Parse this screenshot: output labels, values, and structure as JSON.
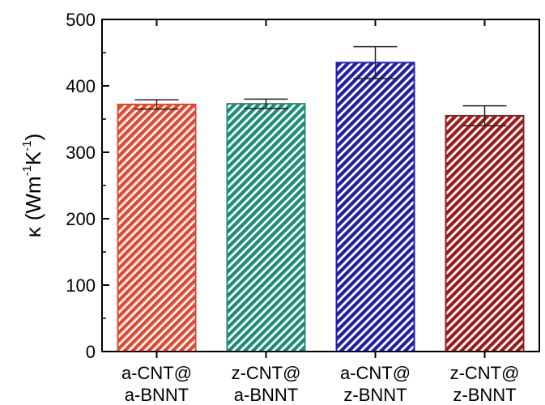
{
  "chart_data": {
    "type": "bar",
    "categories": [
      [
        "a-CNT@",
        "a-BNNT"
      ],
      [
        "z-CNT@",
        "a-BNNT"
      ],
      [
        "a-CNT@",
        "z-BNNT"
      ],
      [
        "z-CNT@",
        "z-BNNT"
      ]
    ],
    "values": [
      372,
      373,
      435,
      355
    ],
    "errors": [
      7,
      7,
      24,
      15
    ],
    "colors": [
      "#e8452c",
      "#1a8c7a",
      "#1f1fa8",
      "#a01818"
    ],
    "ylim": [
      0,
      500
    ],
    "yticks": [
      0,
      100,
      200,
      300,
      400,
      500
    ],
    "ylabel": {
      "symbol": "κ",
      "open": "(Wm",
      "sup1": "-1",
      "mid": "K",
      "sup2": "-1",
      "close": ")"
    },
    "title": "",
    "xlabel": "",
    "grid": false,
    "legend": "none"
  }
}
